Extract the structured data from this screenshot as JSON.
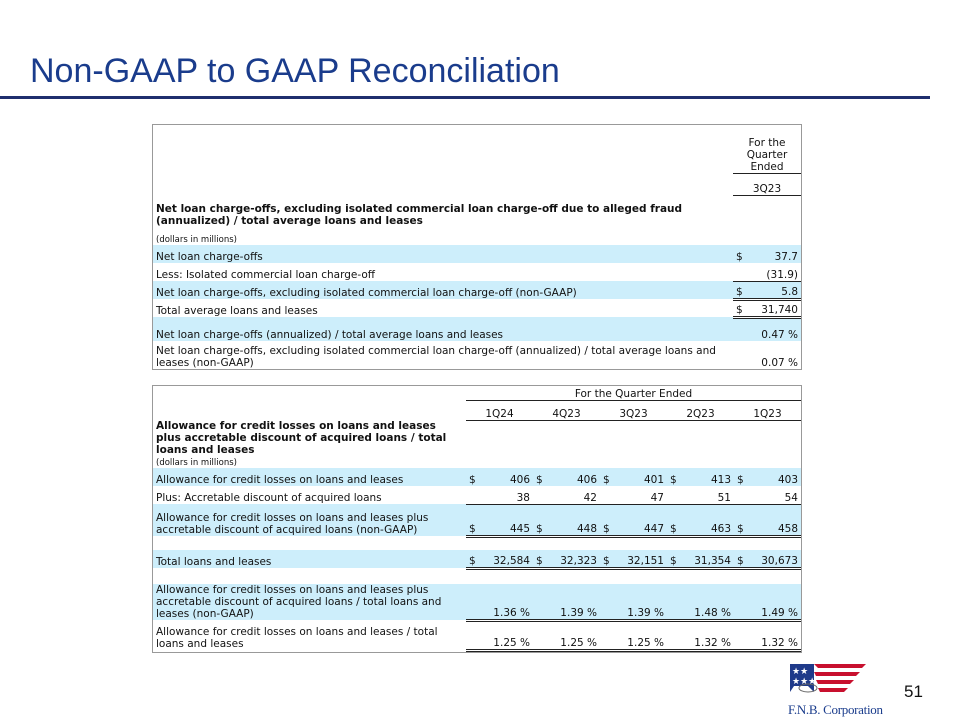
{
  "title": "Non-GAAP to GAAP Reconciliation",
  "page_number": "51",
  "logo_text": "F.N.B. Corporation",
  "table1": {
    "period_header": "For the Quarter Ended",
    "column": "3Q23",
    "section_title": "Net loan charge-offs, excluding isolated commercial loan charge-off due to alleged fraud (annualized) / total average loans and leases",
    "units": "(dollars in millions)",
    "rows": [
      {
        "label": "Net loan charge-offs",
        "sign": "$",
        "value": "37.7"
      },
      {
        "label": "Less: Isolated commercial loan charge-off",
        "sign": "",
        "value": "(31.9)"
      },
      {
        "label": "Net loan charge-offs, excluding isolated commercial loan charge-off (non-GAAP)",
        "sign": "$",
        "value": "5.8"
      },
      {
        "label": "Total average loans and leases",
        "sign": "$",
        "value": "31,740"
      },
      {
        "label": "Net loan charge-offs (annualized) / total average loans and leases",
        "sign": "",
        "value": "0.47 %"
      },
      {
        "label": "Net loan charge-offs, excluding isolated commercial loan charge-off (annualized) / total average loans and leases (non-GAAP)",
        "sign": "",
        "value": "0.07 %"
      }
    ]
  },
  "table2": {
    "period_header": "For the Quarter Ended",
    "columns": [
      "1Q24",
      "4Q23",
      "3Q23",
      "2Q23",
      "1Q23"
    ],
    "section_title": "Allowance for credit losses on loans and leases plus accretable discount of acquired loans / total loans and leases",
    "units": "(dollars in millions)",
    "rows": [
      {
        "label": "Allowance for credit losses on loans and leases",
        "sign": "$",
        "values": [
          "406",
          "406",
          "401",
          "413",
          "403"
        ]
      },
      {
        "label": "Plus: Accretable discount of acquired loans",
        "sign": "",
        "values": [
          "38",
          "42",
          "47",
          "51",
          "54"
        ]
      },
      {
        "label": "Allowance for credit losses on loans and leases plus accretable discount of acquired loans (non-GAAP)",
        "sign": "$",
        "values": [
          "445",
          "448",
          "447",
          "463",
          "458"
        ]
      },
      {
        "label": "Total loans and leases",
        "sign": "$",
        "values": [
          "32,584",
          "32,323",
          "32,151",
          "31,354",
          "30,673"
        ]
      },
      {
        "label": "Allowance for credit losses on loans and leases plus accretable discount of acquired loans / total loans and leases (non-GAAP)",
        "sign": "",
        "values": [
          "1.36 %",
          "1.39 %",
          "1.39 %",
          "1.48 %",
          "1.49 %"
        ]
      },
      {
        "label": "Allowance for credit losses on loans and leases / total loans and leases",
        "sign": "",
        "values": [
          "1.25 %",
          "1.25 %",
          "1.25 %",
          "1.32 %",
          "1.32 %"
        ]
      }
    ]
  },
  "colors": {
    "title": "#1a3c8c",
    "row_highlight": "#cdeefb",
    "rule": "#1f2f6e"
  }
}
